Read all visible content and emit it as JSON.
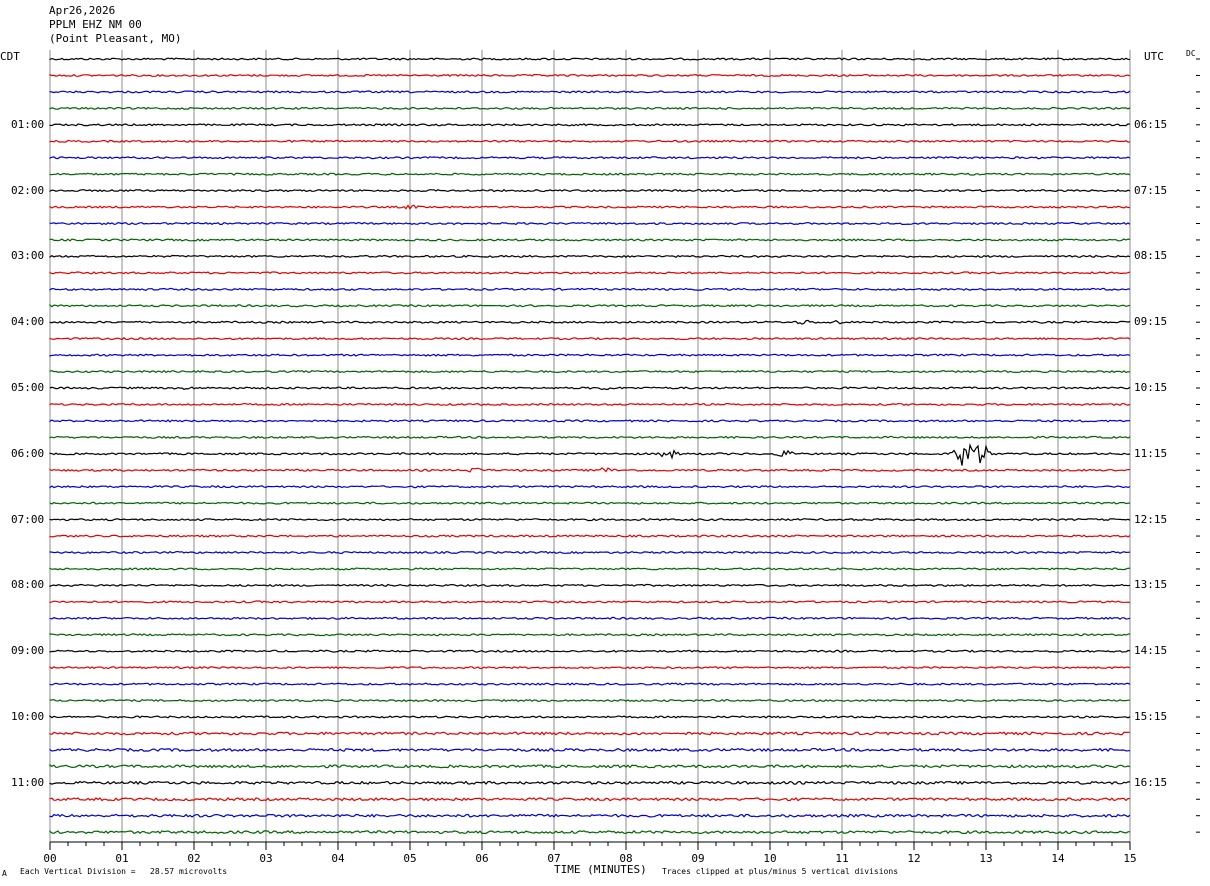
{
  "header": {
    "date": "Apr26,2026",
    "station": "PPLM EHZ NM 00",
    "location": "(Point Pleasant, MO)"
  },
  "left_tz": "CDT",
  "right_tz": "UTC",
  "dc_label": "DC",
  "footer": {
    "scale_note": "Each Vertical Division =   28.57 microvolts",
    "xlabel": "TIME (MINUTES)",
    "clip_note": "Traces clipped at plus/minus 5 vertical divisions",
    "corner_mark": "A"
  },
  "chart_data": {
    "type": "line",
    "title": "PPLM EHZ NM 00",
    "xlabel": "TIME (MINUTES)",
    "xlim": [
      0,
      15
    ],
    "x_ticks": [
      "00",
      "01",
      "02",
      "03",
      "04",
      "05",
      "06",
      "07",
      "08",
      "09",
      "10",
      "11",
      "12",
      "13",
      "14",
      "15"
    ],
    "rows": 48,
    "row_minutes": 15,
    "trace_colors": [
      "#000000",
      "#e00000",
      "#0000c8",
      "#006400"
    ],
    "left_hour_labels": [
      {
        "row": 4,
        "label": "01:00"
      },
      {
        "row": 8,
        "label": "02:00"
      },
      {
        "row": 12,
        "label": "03:00"
      },
      {
        "row": 16,
        "label": "04:00"
      },
      {
        "row": 20,
        "label": "05:00"
      },
      {
        "row": 24,
        "label": "06:00"
      },
      {
        "row": 28,
        "label": "07:00"
      },
      {
        "row": 32,
        "label": "08:00"
      },
      {
        "row": 36,
        "label": "09:00"
      },
      {
        "row": 40,
        "label": "10:00"
      },
      {
        "row": 44,
        "label": "11:00"
      }
    ],
    "right_hour_labels": [
      {
        "row": 4,
        "label": "06:15"
      },
      {
        "row": 8,
        "label": "07:15"
      },
      {
        "row": 12,
        "label": "08:15"
      },
      {
        "row": 16,
        "label": "09:15"
      },
      {
        "row": 20,
        "label": "10:15"
      },
      {
        "row": 24,
        "label": "11:15"
      },
      {
        "row": 28,
        "label": "12:15"
      },
      {
        "row": 32,
        "label": "13:15"
      },
      {
        "row": 36,
        "label": "14:15"
      },
      {
        "row": 40,
        "label": "15:15"
      },
      {
        "row": 44,
        "label": "16:15"
      }
    ],
    "events": [
      {
        "row": 9,
        "minute": 5.0,
        "amplitude": 2.5
      },
      {
        "row": 16,
        "minute": 10.5,
        "amplitude": 3
      },
      {
        "row": 16,
        "minute": 10.9,
        "amplitude": 2.5
      },
      {
        "row": 20,
        "minute": 1.9,
        "amplitude": 2
      },
      {
        "row": 20,
        "minute": 7.7,
        "amplitude": 2.5
      },
      {
        "row": 24,
        "minute": 8.6,
        "amplitude": 5
      },
      {
        "row": 24,
        "minute": 10.2,
        "amplitude": 4
      },
      {
        "row": 24,
        "minute": 12.7,
        "amplitude": 14
      },
      {
        "row": 24,
        "minute": 12.9,
        "amplitude": 14
      },
      {
        "row": 25,
        "minute": 5.9,
        "amplitude": 3
      },
      {
        "row": 25,
        "minute": 7.7,
        "amplitude": 3.5
      }
    ]
  }
}
